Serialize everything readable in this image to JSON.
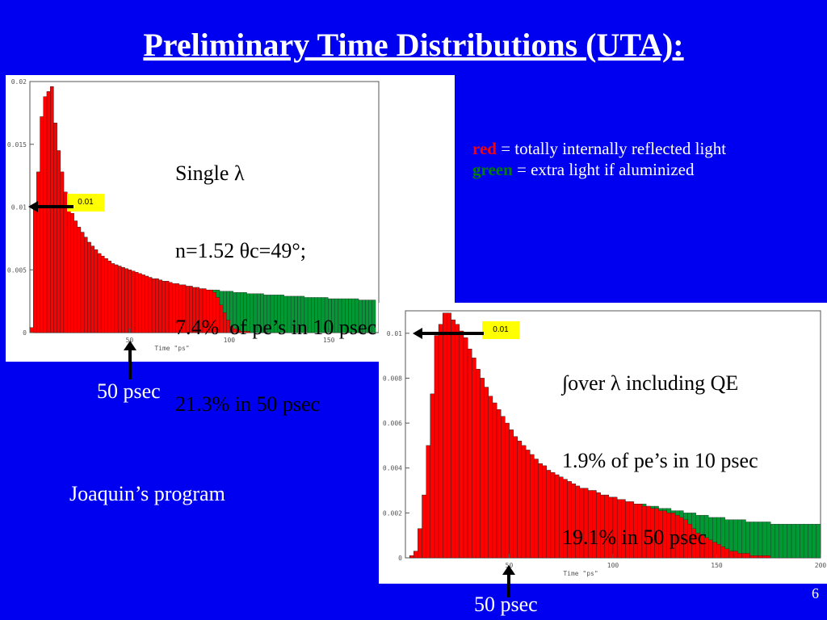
{
  "slide": {
    "title": "Preliminary Time Distributions (UTA):",
    "legend_red_word": "red",
    "legend_red_text": " = totally internally reflected light",
    "legend_green_word": "green",
    "legend_green_text": " = extra light if aluminized",
    "note": "Joaquin’s program",
    "page_number": "6",
    "colors": {
      "background": "#0000f0",
      "red": "#ff0000",
      "green": "#008000"
    }
  },
  "chart_data": [
    {
      "type": "bar",
      "xlabel": "Time \"ps\"",
      "xlim": [
        0,
        175
      ],
      "ylim": [
        0,
        0.02
      ],
      "xticks": [
        0,
        50,
        100,
        150
      ],
      "xtick_labels": [
        "",
        "50",
        "100",
        "150"
      ],
      "yticks": [
        0,
        0.005,
        0.01,
        0.015,
        0.02
      ],
      "ytick_labels": [
        "0",
        "0.005",
        "0.01",
        "0.015",
        "0.02"
      ],
      "bin_width": 1.7,
      "annotation_lines": [
        "Single λ",
        "n=1.52 θc=49°;",
        "7.4%  of pe’s in 10 psec",
        "21.3% in 50 psec"
      ],
      "marker_label": "0.01",
      "below_label": "50 psec",
      "series": [
        {
          "color": "#ff0000",
          "values": [
            0.0004,
            0.0099,
            0.0128,
            0.0172,
            0.0188,
            0.0192,
            0.0196,
            0.0167,
            0.0145,
            0.0128,
            0.0112,
            0.0102,
            0.0095,
            0.0089,
            0.0084,
            0.008,
            0.0076,
            0.0072,
            0.0069,
            0.0066,
            0.0063,
            0.0061,
            0.0059,
            0.0057,
            0.0055,
            0.0054,
            0.0053,
            0.0052,
            0.0051,
            0.005,
            0.0049,
            0.0048,
            0.0047,
            0.0046,
            0.0045,
            0.0044,
            0.0043,
            0.0043,
            0.0042,
            0.0041,
            0.0041,
            0.004,
            0.0039,
            0.0039,
            0.0038,
            0.0038,
            0.0037,
            0.0037,
            0.0036,
            0.0036,
            0.0035,
            0.0035,
            0.0034,
            0.0034,
            0.0032,
            0.0028,
            0.0022,
            0.0016,
            0.001,
            0.0005,
            0.0003,
            0.0002,
            0.0001,
            0.0001,
            0.0001,
            0.0,
            0.0,
            0.0,
            0.0,
            0.0,
            0.0,
            0.0,
            0.0,
            0.0,
            0.0,
            0.0,
            0.0,
            0.0,
            0.0,
            0.0,
            0.0,
            0.0,
            0.0,
            0.0,
            0.0,
            0.0,
            0.0,
            0.0,
            0.0,
            0.0,
            0.0,
            0.0,
            0.0,
            0.0,
            0.0,
            0.0,
            0.0,
            0.0,
            0.0,
            0.0,
            0.0,
            0.0
          ]
        },
        {
          "color": "#009933",
          "values": [
            0.0004,
            0.0099,
            0.0128,
            0.0172,
            0.0188,
            0.0192,
            0.0196,
            0.0167,
            0.0145,
            0.0128,
            0.0112,
            0.0102,
            0.0095,
            0.0089,
            0.0084,
            0.008,
            0.0076,
            0.0072,
            0.0069,
            0.0066,
            0.0063,
            0.0061,
            0.0059,
            0.0057,
            0.0055,
            0.0054,
            0.0053,
            0.0052,
            0.0051,
            0.005,
            0.0049,
            0.0048,
            0.0047,
            0.0046,
            0.0045,
            0.0044,
            0.0043,
            0.0043,
            0.0042,
            0.0041,
            0.0041,
            0.004,
            0.0039,
            0.0039,
            0.0038,
            0.0038,
            0.0037,
            0.0037,
            0.0036,
            0.0036,
            0.0035,
            0.0035,
            0.0034,
            0.0034,
            0.0034,
            0.0034,
            0.0033,
            0.0033,
            0.0033,
            0.0033,
            0.0032,
            0.0032,
            0.0032,
            0.0032,
            0.0031,
            0.0031,
            0.0031,
            0.0031,
            0.0031,
            0.003,
            0.003,
            0.003,
            0.003,
            0.003,
            0.003,
            0.0029,
            0.0029,
            0.0029,
            0.0029,
            0.0029,
            0.0029,
            0.0028,
            0.0028,
            0.0028,
            0.0028,
            0.0028,
            0.0028,
            0.0028,
            0.0027,
            0.0027,
            0.0027,
            0.0027,
            0.0027,
            0.0027,
            0.0027,
            0.0027,
            0.0027,
            0.0026,
            0.0026,
            0.0026,
            0.0026,
            0.0026
          ]
        }
      ]
    },
    {
      "type": "bar",
      "xlabel": "Time \"ps\"",
      "xlim": [
        0,
        200
      ],
      "ylim": [
        0,
        0.011
      ],
      "xticks": [
        0,
        50,
        100,
        150,
        200
      ],
      "xtick_labels": [
        "",
        "50",
        "100",
        "150",
        "200"
      ],
      "yticks": [
        0,
        0.002,
        0.004,
        0.006,
        0.008,
        0.01
      ],
      "ytick_labels": [
        "0",
        "0.002",
        "0.004",
        "0.006",
        "0.008",
        "0.01"
      ],
      "bin_width": 2,
      "annotation_lines": [
        "∫over λ including QE",
        "1.9% of pe’s in 10 psec",
        "19.1% in 50 psec"
      ],
      "marker_label": "0.01",
      "below_label": "50 psec",
      "series": [
        {
          "color": "#ff0000",
          "values": [
            0.0,
            0.0001,
            0.0003,
            0.0013,
            0.0028,
            0.005,
            0.0073,
            0.0099,
            0.0104,
            0.0109,
            0.0109,
            0.0106,
            0.0104,
            0.0101,
            0.0098,
            0.0093,
            0.0089,
            0.0084,
            0.008,
            0.0076,
            0.0072,
            0.0069,
            0.0066,
            0.0063,
            0.006,
            0.0057,
            0.0054,
            0.0052,
            0.005,
            0.0048,
            0.0046,
            0.0044,
            0.0042,
            0.0041,
            0.0039,
            0.0038,
            0.0037,
            0.0036,
            0.0035,
            0.0034,
            0.0033,
            0.0032,
            0.0031,
            0.0031,
            0.003,
            0.003,
            0.0029,
            0.0028,
            0.0028,
            0.0027,
            0.0027,
            0.0026,
            0.0026,
            0.0025,
            0.0025,
            0.0024,
            0.0024,
            0.0023,
            0.0023,
            0.0022,
            0.0022,
            0.0021,
            0.0021,
            0.002,
            0.002,
            0.0019,
            0.0018,
            0.0017,
            0.0015,
            0.0013,
            0.0011,
            0.001,
            0.0009,
            0.0008,
            0.0007,
            0.0006,
            0.0005,
            0.0004,
            0.0003,
            0.0003,
            0.0002,
            0.0002,
            0.0002,
            0.0001,
            0.0001,
            0.0001,
            0.0001,
            0.0001,
            0.0,
            0.0,
            0.0,
            0.0,
            0.0,
            0.0,
            0.0,
            0.0,
            0.0,
            0.0,
            0.0,
            0.0
          ]
        },
        {
          "color": "#009933",
          "values": [
            0.0,
            0.0001,
            0.0003,
            0.0013,
            0.0028,
            0.005,
            0.0073,
            0.0099,
            0.0104,
            0.0109,
            0.0109,
            0.0106,
            0.0104,
            0.0101,
            0.0098,
            0.0093,
            0.0089,
            0.0084,
            0.008,
            0.0076,
            0.0072,
            0.0069,
            0.0066,
            0.0063,
            0.006,
            0.0057,
            0.0054,
            0.0052,
            0.005,
            0.0048,
            0.0046,
            0.0044,
            0.0042,
            0.0041,
            0.0039,
            0.0038,
            0.0037,
            0.0036,
            0.0035,
            0.0034,
            0.0033,
            0.0032,
            0.0031,
            0.0031,
            0.003,
            0.003,
            0.0029,
            0.0028,
            0.0028,
            0.0027,
            0.0027,
            0.0026,
            0.0026,
            0.0025,
            0.0025,
            0.0024,
            0.0024,
            0.0024,
            0.0023,
            0.0023,
            0.0023,
            0.0022,
            0.0022,
            0.0022,
            0.0021,
            0.0021,
            0.0021,
            0.002,
            0.002,
            0.002,
            0.0019,
            0.0019,
            0.0019,
            0.0018,
            0.0018,
            0.0018,
            0.0018,
            0.0017,
            0.0017,
            0.0017,
            0.0017,
            0.0017,
            0.0016,
            0.0016,
            0.0016,
            0.0016,
            0.0016,
            0.0016,
            0.0015,
            0.0015,
            0.0015,
            0.0015,
            0.0015,
            0.0015,
            0.0015,
            0.0015,
            0.0015,
            0.0015,
            0.0015,
            0.0015
          ]
        }
      ]
    }
  ]
}
